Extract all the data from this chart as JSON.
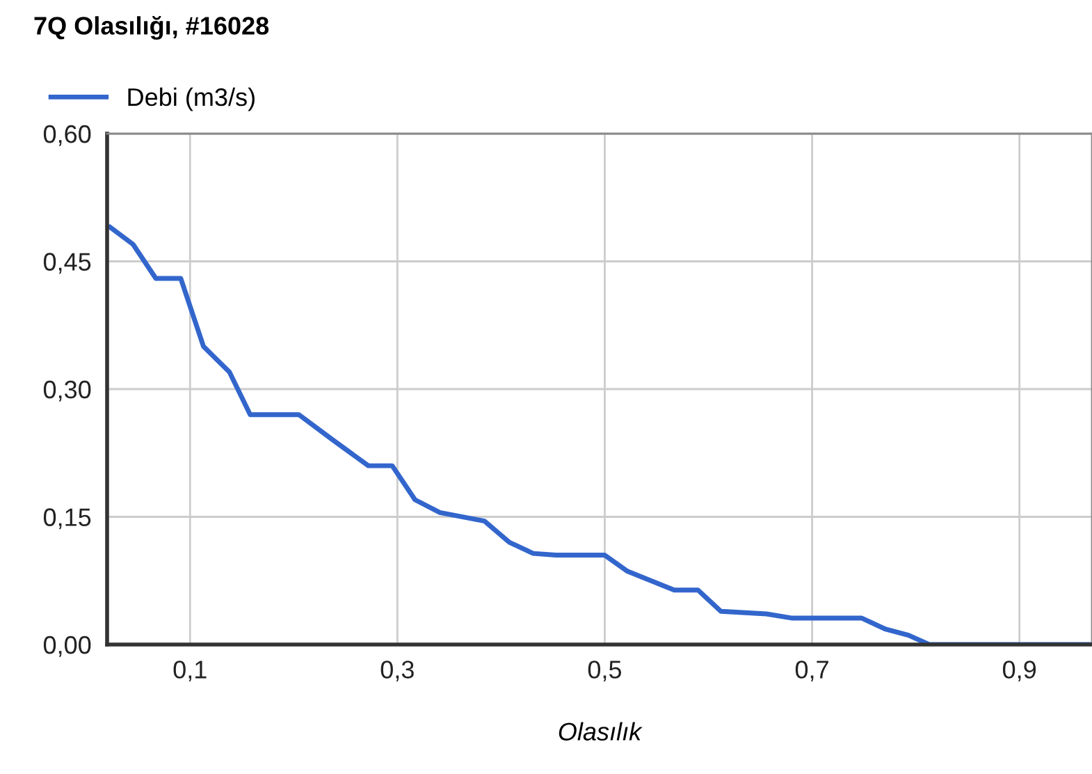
{
  "chart_data": {
    "type": "line",
    "title": "7Q Olasılığı, #16028",
    "xlabel": "Olasılık",
    "series": [
      {
        "name": "Debi (m3/s)",
        "color": "#3366cc",
        "x": [
          0.023,
          0.045,
          0.067,
          0.091,
          0.113,
          0.138,
          0.158,
          0.18,
          0.205,
          0.238,
          0.272,
          0.295,
          0.317,
          0.341,
          0.384,
          0.408,
          0.431,
          0.453,
          0.5,
          0.522,
          0.567,
          0.59,
          0.612,
          0.656,
          0.681,
          0.748,
          0.771,
          0.793,
          0.813,
          0.97
        ],
        "values": [
          0.49,
          0.47,
          0.43,
          0.43,
          0.35,
          0.32,
          0.27,
          0.27,
          0.27,
          0.24,
          0.21,
          0.21,
          0.17,
          0.155,
          0.145,
          0.12,
          0.107,
          0.105,
          0.105,
          0.086,
          0.064,
          0.064,
          0.039,
          0.036,
          0.031,
          0.031,
          0.018,
          0.011,
          0,
          0
        ]
      }
    ],
    "xlim": [
      0.02,
      0.97
    ],
    "xticks": [
      {
        "value": 0.1,
        "label": "0,1"
      },
      {
        "value": 0.3,
        "label": "0,3"
      },
      {
        "value": 0.5,
        "label": "0,5"
      },
      {
        "value": 0.7,
        "label": "0,7"
      },
      {
        "value": 0.9,
        "label": "0,9"
      }
    ],
    "ylim": [
      0,
      0.6
    ],
    "yticks": [
      {
        "value": 0,
        "label": "0,00"
      },
      {
        "value": 0.15,
        "label": "0,15"
      },
      {
        "value": 0.3,
        "label": "0,30"
      },
      {
        "value": 0.45,
        "label": "0,45"
      },
      {
        "value": 0.6,
        "label": "0,60"
      }
    ],
    "grid": true,
    "legend": "top left",
    "marker": "none",
    "line_style": "solid"
  }
}
